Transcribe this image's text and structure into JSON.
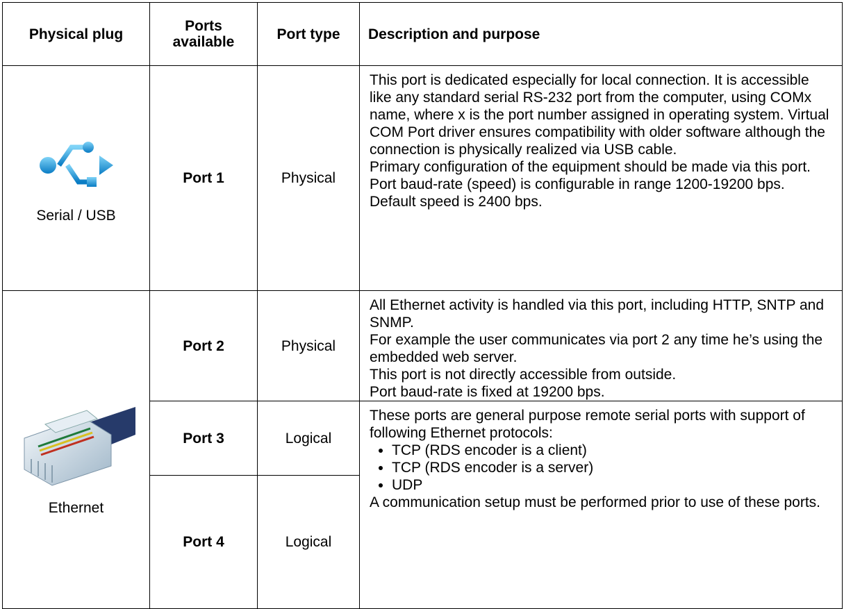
{
  "table": {
    "header": [
      "Physical plug",
      "Ports available",
      "Port type",
      "Description and purpose"
    ],
    "rows": [
      {
        "plug": "Serial / USB",
        "port": "Port 1",
        "type": "Physical",
        "description": [
          "This port is dedicated especially for local connection. It is accessible like any standard serial RS-232 port from the computer, using COMx name, where x is the port number assigned in operating system. Virtual COM Port driver ensures compatibility with older software although the connection is physically realized via USB cable.",
          "Primary configuration of the equipment should be made via this port.",
          "Port baud-rate (speed) is configurable in range 1200-19200 bps. Default speed is 2400 bps."
        ]
      },
      {
        "plug": "Ethernet",
        "port": "Port 2",
        "type": "Physical",
        "description": [
          "All Ethernet activity is handled via this port, including HTTP, SNTP and SNMP.",
          "For example the user communicates via port 2 any time he’s using the embedded web server.",
          "This port is not directly accessible from outside.",
          "Port baud-rate is fixed at 19200 bps."
        ]
      },
      {
        "port": "Port 3",
        "type": "Logical",
        "description": {
          "intro": "These ports are general purpose remote serial ports with support of following Ethernet protocols:",
          "bullets": [
            "TCP (RDS encoder is a client)",
            "TCP (RDS encoder is a server)",
            "UDP"
          ],
          "outro": "A communication setup must be performed prior to use of these ports."
        }
      },
      {
        "port": "Port 4",
        "type": "Logical"
      }
    ]
  }
}
